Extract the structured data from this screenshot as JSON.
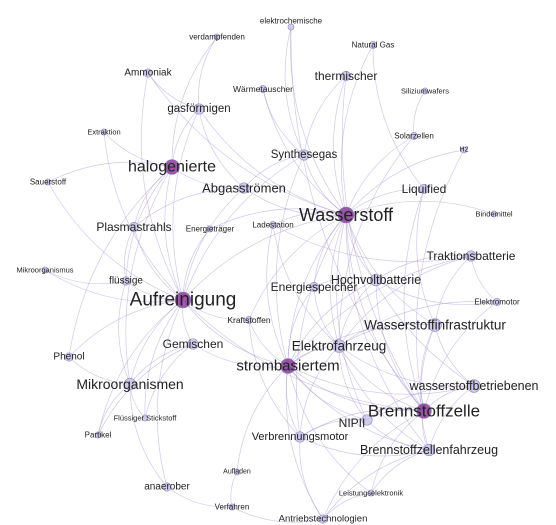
{
  "graph": {
    "node_color": "#c9c7e8",
    "hub_color": "#8a3d9a",
    "edge_color": "#9b87c9",
    "nodes": [
      {
        "id": "verdampfenden",
        "label": "verdampfenden",
        "weight": 1
      },
      {
        "id": "elektrochemische",
        "label": "elektrochemische",
        "weight": 1
      },
      {
        "id": "natural-gas",
        "label": "Natural Gas",
        "weight": 2
      },
      {
        "id": "ammoniak",
        "label": "Ammoniak",
        "weight": 3
      },
      {
        "id": "thermischer",
        "label": "thermischer",
        "weight": 4
      },
      {
        "id": "waermetauscher",
        "label": "Wärmetauscher",
        "weight": 2
      },
      {
        "id": "siliziumwafers",
        "label": "Siliziumwafers",
        "weight": 1
      },
      {
        "id": "gasfoermigen",
        "label": "gasförmigen",
        "weight": 5
      },
      {
        "id": "extraktion",
        "label": "Extraktion",
        "weight": 1
      },
      {
        "id": "solarzellen",
        "label": "Solarzellen",
        "weight": 2
      },
      {
        "id": "h2",
        "label": "H2",
        "weight": 1
      },
      {
        "id": "synthesegas",
        "label": "Synthesegas",
        "weight": 5
      },
      {
        "id": "halogenierte",
        "label": "halogenierte",
        "weight": 9
      },
      {
        "id": "abgasstroemen",
        "label": "Abgasströmen",
        "weight": 5
      },
      {
        "id": "sauerstoff",
        "label": "Sauerstoff",
        "weight": 1
      },
      {
        "id": "liquified",
        "label": "Liquified",
        "weight": 4
      },
      {
        "id": "wasserstoff",
        "label": "Wasserstoff",
        "weight": 10
      },
      {
        "id": "bindemittel",
        "label": "Bindemittel",
        "weight": 1
      },
      {
        "id": "plasmastrahls",
        "label": "Plasmastrahls",
        "weight": 4
      },
      {
        "id": "energietraeger",
        "label": "Energieträger",
        "weight": 1
      },
      {
        "id": "ladestation",
        "label": "Ladestation",
        "weight": 2
      },
      {
        "id": "traktionsbatterie",
        "label": "Traktionsbatterie",
        "weight": 5
      },
      {
        "id": "mikroorganismus",
        "label": "Mikroorganismus",
        "weight": 1
      },
      {
        "id": "fluessige",
        "label": "flüssige",
        "weight": 3
      },
      {
        "id": "hochvoltbatterie",
        "label": "Hochvoltbatterie",
        "weight": 6
      },
      {
        "id": "energiespeicher",
        "label": "Energiespeicher",
        "weight": 4
      },
      {
        "id": "aufreinigung",
        "label": "Aufreinigung",
        "weight": 10
      },
      {
        "id": "elektromotor",
        "label": "Elektromotor",
        "weight": 2
      },
      {
        "id": "kraftstoffen",
        "label": "Kraftstoffen",
        "weight": 2
      },
      {
        "id": "wasserstoffinfrastruktur",
        "label": "Wasserstoffinfrastruktur",
        "weight": 7
      },
      {
        "id": "gemischen",
        "label": "Gemischen",
        "weight": 5
      },
      {
        "id": "phenol",
        "label": "Phenol",
        "weight": 3
      },
      {
        "id": "elektrofahrzeug",
        "label": "Elektrofahrzeug",
        "weight": 7
      },
      {
        "id": "strombasiertem",
        "label": "strombasiertem",
        "weight": 9
      },
      {
        "id": "mikroorganismen",
        "label": "Mikroorganismen",
        "weight": 6
      },
      {
        "id": "wasserstoffbetriebenen",
        "label": "wasserstoffbetriebenen",
        "weight": 7
      },
      {
        "id": "fluessiger-stickstoff",
        "label": "Flüssiger Stickstoff",
        "weight": 1
      },
      {
        "id": "brennstoffzelle",
        "label": "Brennstoffzelle",
        "weight": 9
      },
      {
        "id": "partikel",
        "label": "Partikel",
        "weight": 1
      },
      {
        "id": "nipii",
        "label": "NIPII",
        "weight": 5
      },
      {
        "id": "verbrennungsmotor",
        "label": "Verbrennungsmotor",
        "weight": 5
      },
      {
        "id": "brennstoffzellenfahrzeug",
        "label": "Brennstoffzellenfahrzeug",
        "weight": 6
      },
      {
        "id": "aufladen",
        "label": "Aufladen",
        "weight": 1
      },
      {
        "id": "anaerober",
        "label": "anaerober",
        "weight": 3
      },
      {
        "id": "leistungselektronik",
        "label": "Leistungselektronik",
        "weight": 1
      },
      {
        "id": "verfahren",
        "label": "Verfahren",
        "weight": 1
      },
      {
        "id": "antriebstechnologien",
        "label": "Antriebstechnologien",
        "weight": 3
      }
    ],
    "edges": [
      [
        "verdampfenden",
        "gasfoermigen"
      ],
      [
        "verdampfenden",
        "halogenierte"
      ],
      [
        "elektrochemische",
        "wasserstoff"
      ],
      [
        "elektrochemische",
        "brennstoffzelle"
      ],
      [
        "elektrochemische",
        "synthesegas"
      ],
      [
        "natural-gas",
        "liquified"
      ],
      [
        "natural-gas",
        "wasserstoff"
      ],
      [
        "ammoniak",
        "wasserstoff"
      ],
      [
        "ammoniak",
        "gasfoermigen"
      ],
      [
        "ammoniak",
        "aufreinigung"
      ],
      [
        "thermischer",
        "wasserstoff"
      ],
      [
        "thermischer",
        "brennstoffzelle"
      ],
      [
        "thermischer",
        "synthesegas"
      ],
      [
        "waermetauscher",
        "synthesegas"
      ],
      [
        "waermetauscher",
        "wasserstoff"
      ],
      [
        "siliziumwafers",
        "solarzellen"
      ],
      [
        "gasfoermigen",
        "halogenierte"
      ],
      [
        "gasfoermigen",
        "aufreinigung"
      ],
      [
        "gasfoermigen",
        "wasserstoff"
      ],
      [
        "gasfoermigen",
        "abgasstroemen"
      ],
      [
        "extraktion",
        "halogenierte"
      ],
      [
        "extraktion",
        "aufreinigung"
      ],
      [
        "solarzellen",
        "wasserstoff"
      ],
      [
        "solarzellen",
        "elektrofahrzeug"
      ],
      [
        "h2",
        "wasserstoff"
      ],
      [
        "h2",
        "brennstoffzelle"
      ],
      [
        "synthesegas",
        "wasserstoff"
      ],
      [
        "synthesegas",
        "aufreinigung"
      ],
      [
        "synthesegas",
        "abgasstroemen"
      ],
      [
        "synthesegas",
        "strombasiertem"
      ],
      [
        "halogenierte",
        "aufreinigung"
      ],
      [
        "halogenierte",
        "abgasstroemen"
      ],
      [
        "halogenierte",
        "plasmastrahls"
      ],
      [
        "halogenierte",
        "sauerstoff"
      ],
      [
        "halogenierte",
        "mikroorganismen"
      ],
      [
        "halogenierte",
        "fluessige"
      ],
      [
        "halogenierte",
        "phenol"
      ],
      [
        "abgasstroemen",
        "aufreinigung"
      ],
      [
        "abgasstroemen",
        "wasserstoff"
      ],
      [
        "abgasstroemen",
        "plasmastrahls"
      ],
      [
        "sauerstoff",
        "aufreinigung"
      ],
      [
        "liquified",
        "wasserstoff"
      ],
      [
        "liquified",
        "wasserstoffinfrastruktur"
      ],
      [
        "liquified",
        "brennstoffzelle"
      ],
      [
        "wasserstoff",
        "aufreinigung"
      ],
      [
        "wasserstoff",
        "brennstoffzelle"
      ],
      [
        "wasserstoff",
        "wasserstoffinfrastruktur"
      ],
      [
        "wasserstoff",
        "strombasiertem"
      ],
      [
        "wasserstoff",
        "elektrofahrzeug"
      ],
      [
        "wasserstoff",
        "energiespeicher"
      ],
      [
        "wasserstoff",
        "wasserstoffbetriebenen"
      ],
      [
        "wasserstoff",
        "nipii"
      ],
      [
        "wasserstoff",
        "brennstoffzellenfahrzeug"
      ],
      [
        "wasserstoff",
        "hochvoltbatterie"
      ],
      [
        "wasserstoff",
        "kraftstoffen"
      ],
      [
        "wasserstoff",
        "energietraeger"
      ],
      [
        "wasserstoff",
        "ladestation"
      ],
      [
        "wasserstoff",
        "verbrennungsmotor"
      ],
      [
        "bindemittel",
        "wasserstoff"
      ],
      [
        "plasmastrahls",
        "aufreinigung"
      ],
      [
        "plasmastrahls",
        "fluessige"
      ],
      [
        "energietraeger",
        "aufreinigung"
      ],
      [
        "ladestation",
        "elektrofahrzeug"
      ],
      [
        "ladestation",
        "traktionsbatterie"
      ],
      [
        "ladestation",
        "strombasiertem"
      ],
      [
        "traktionsbatterie",
        "hochvoltbatterie"
      ],
      [
        "traktionsbatterie",
        "elektrofahrzeug"
      ],
      [
        "traktionsbatterie",
        "elektromotor"
      ],
      [
        "traktionsbatterie",
        "strombasiertem"
      ],
      [
        "traktionsbatterie",
        "wasserstoffinfrastruktur"
      ],
      [
        "mikroorganismus",
        "aufreinigung"
      ],
      [
        "mikroorganismus",
        "fluessige"
      ],
      [
        "fluessige",
        "aufreinigung"
      ],
      [
        "fluessige",
        "mikroorganismen"
      ],
      [
        "hochvoltbatterie",
        "elektrofahrzeug"
      ],
      [
        "hochvoltbatterie",
        "strombasiertem"
      ],
      [
        "hochvoltbatterie",
        "elektromotor"
      ],
      [
        "hochvoltbatterie",
        "energiespeicher"
      ],
      [
        "hochvoltbatterie",
        "brennstoffzelle"
      ],
      [
        "energiespeicher",
        "elektrofahrzeug"
      ],
      [
        "energiespeicher",
        "strombasiertem"
      ],
      [
        "aufreinigung",
        "gemischen"
      ],
      [
        "aufreinigung",
        "phenol"
      ],
      [
        "aufreinigung",
        "mikroorganismen"
      ],
      [
        "aufreinigung",
        "kraftstoffen"
      ],
      [
        "aufreinigung",
        "strombasiertem"
      ],
      [
        "aufreinigung",
        "fluessiger-stickstoff"
      ],
      [
        "aufreinigung",
        "partikel"
      ],
      [
        "aufreinigung",
        "anaerober"
      ],
      [
        "aufreinigung",
        "brennstoffzelle"
      ],
      [
        "elektromotor",
        "elektrofahrzeug"
      ],
      [
        "elektromotor",
        "brennstoffzelle"
      ],
      [
        "kraftstoffen",
        "strombasiertem"
      ],
      [
        "kraftstoffen",
        "verbrennungsmotor"
      ],
      [
        "wasserstoffinfrastruktur",
        "brennstoffzelle"
      ],
      [
        "wasserstoffinfrastruktur",
        "wasserstoffbetriebenen"
      ],
      [
        "wasserstoffinfrastruktur",
        "elektrofahrzeug"
      ],
      [
        "wasserstoffinfrastruktur",
        "brennstoffzellenfahrzeug"
      ],
      [
        "wasserstoffinfrastruktur",
        "strombasiertem"
      ],
      [
        "gemischen",
        "mikroorganismen"
      ],
      [
        "gemischen",
        "strombasiertem"
      ],
      [
        "gemischen",
        "fluessiger-stickstoff"
      ],
      [
        "gemischen",
        "partikel"
      ],
      [
        "phenol",
        "mikroorganismen"
      ],
      [
        "elektrofahrzeug",
        "strombasiertem"
      ],
      [
        "elektrofahrzeug",
        "brennstoffzelle"
      ],
      [
        "elektrofahrzeug",
        "nipii"
      ],
      [
        "elektrofahrzeug",
        "wasserstoffbetriebenen"
      ],
      [
        "elektrofahrzeug",
        "verbrennungsmotor"
      ],
      [
        "elektrofahrzeug",
        "brennstoffzellenfahrzeug"
      ],
      [
        "strombasiertem",
        "brennstoffzelle"
      ],
      [
        "strombasiertem",
        "wasserstoffbetriebenen"
      ],
      [
        "strombasiertem",
        "nipii"
      ],
      [
        "strombasiertem",
        "verbrennungsmotor"
      ],
      [
        "strombasiertem",
        "brennstoffzellenfahrzeug"
      ],
      [
        "strombasiertem",
        "antriebstechnologien"
      ],
      [
        "strombasiertem",
        "leistungselektronik"
      ],
      [
        "strombasiertem",
        "aufladen"
      ],
      [
        "mikroorganismen",
        "anaerober"
      ],
      [
        "mikroorganismen",
        "fluessiger-stickstoff"
      ],
      [
        "mikroorganismen",
        "partikel"
      ],
      [
        "wasserstoffbetriebenen",
        "brennstoffzelle"
      ],
      [
        "wasserstoffbetriebenen",
        "brennstoffzellenfahrzeug"
      ],
      [
        "wasserstoffbetriebenen",
        "nipii"
      ],
      [
        "brennstoffzelle",
        "nipii"
      ],
      [
        "brennstoffzelle",
        "brennstoffzellenfahrzeug"
      ],
      [
        "brennstoffzelle",
        "verbrennungsmotor"
      ],
      [
        "brennstoffzelle",
        "antriebstechnologien"
      ],
      [
        "brennstoffzelle",
        "leistungselektronik"
      ],
      [
        "nipii",
        "brennstoffzellenfahrzeug"
      ],
      [
        "nipii",
        "verbrennungsmotor"
      ],
      [
        "verbrennungsmotor",
        "antriebstechnologien"
      ],
      [
        "verbrennungsmotor",
        "brennstoffzellenfahrzeug"
      ],
      [
        "brennstoffzellenfahrzeug",
        "antriebstechnologien"
      ],
      [
        "brennstoffzellenfahrzeug",
        "leistungselektronik"
      ],
      [
        "aufladen",
        "verfahren"
      ],
      [
        "anaerober",
        "verfahren"
      ],
      [
        "verfahren",
        "antriebstechnologien"
      ],
      [
        "leistungselektronik",
        "antriebstechnologien"
      ]
    ]
  }
}
